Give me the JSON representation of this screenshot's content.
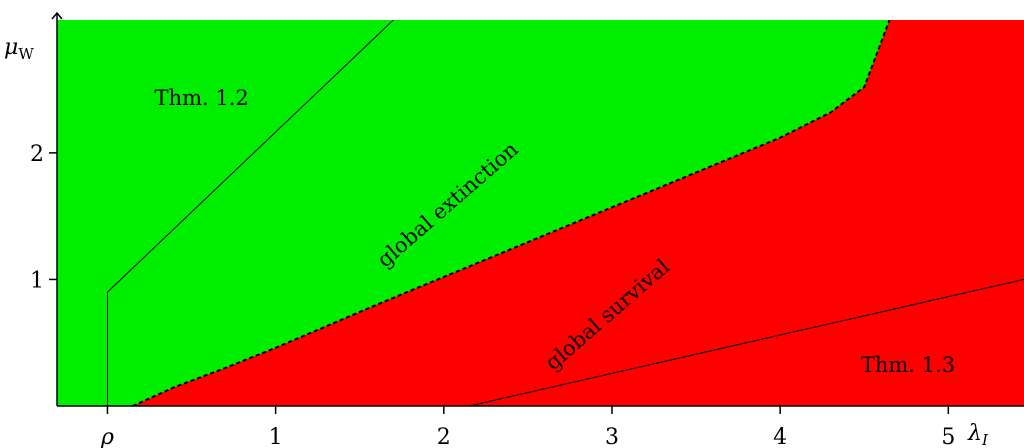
{
  "chart_data": {
    "type": "area",
    "xlabel": "λ",
    "xlabel_sub": "I",
    "ylabel": "μ",
    "ylabel_sub": "W",
    "xlim": [
      -0.3,
      5.45
    ],
    "ylim": [
      0,
      3.05
    ],
    "x_ticks": [
      {
        "value": 0,
        "label": "ρ"
      },
      {
        "value": 1,
        "label": "1"
      },
      {
        "value": 2,
        "label": "2"
      },
      {
        "value": 3,
        "label": "3"
      },
      {
        "value": 4,
        "label": "4"
      },
      {
        "value": 5,
        "label": "5"
      }
    ],
    "y_ticks": [
      {
        "value": 1,
        "label": "1"
      },
      {
        "value": 2,
        "label": "2"
      }
    ],
    "regions": [
      {
        "name": "global extinction",
        "color": "#00ee00"
      },
      {
        "name": "global survival",
        "color": "#ff0000"
      }
    ],
    "critical_curve": {
      "style": "dashed",
      "x": [
        0.15,
        0.4,
        0.7,
        1.0,
        1.3,
        1.6,
        2.0,
        2.4,
        2.8,
        3.2,
        3.6,
        4.0,
        4.3,
        4.5,
        4.65
      ],
      "y": [
        0.0,
        0.15,
        0.3,
        0.46,
        0.63,
        0.8,
        1.02,
        1.24,
        1.46,
        1.68,
        1.9,
        2.12,
        2.32,
        2.52,
        3.05
      ]
    },
    "bound_lines": [
      {
        "name": "Thm. 1.2",
        "x": [
          0,
          0,
          1.7
        ],
        "y": [
          0,
          0.9,
          3.05
        ]
      },
      {
        "name": "Thm. 1.3",
        "x": [
          2.15,
          5.45
        ],
        "y": [
          0,
          1.0
        ]
      }
    ],
    "annotations": [
      {
        "text": "Thm. 1.2",
        "x": 0.28,
        "y": 2.38,
        "rotate": 0
      },
      {
        "text": "global extinction",
        "x": 2.05,
        "y": 1.55,
        "rotate": -41
      },
      {
        "text": "global survival",
        "x": 3.0,
        "y": 0.68,
        "rotate": -41
      },
      {
        "text": "Thm. 1.3",
        "x": 4.48,
        "y": 0.27,
        "rotate": 0
      }
    ],
    "grid": false,
    "legend": "none"
  }
}
